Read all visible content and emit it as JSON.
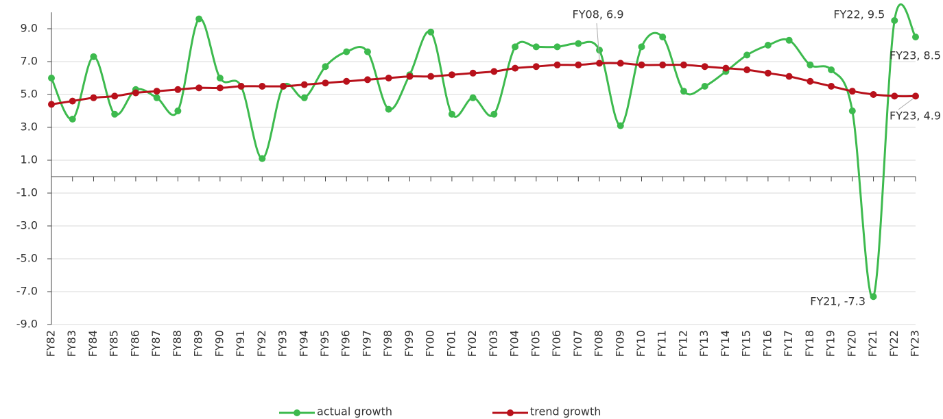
{
  "chart_data": {
    "type": "line",
    "categories": [
      "FY82",
      "FY83",
      "FY84",
      "FY85",
      "FY86",
      "FY87",
      "FY88",
      "FY89",
      "FY90",
      "FY91",
      "FY92",
      "FY93",
      "FY94",
      "FY95",
      "FY96",
      "FY97",
      "FY98",
      "FY99",
      "FY00",
      "FY01",
      "FY02",
      "FY03",
      "FY04",
      "FY05",
      "FY06",
      "FY07",
      "FY08",
      "FY09",
      "FY10",
      "FY11",
      "FY12",
      "FY13",
      "FY14",
      "FY15",
      "FY16",
      "FY17",
      "FY18",
      "FY19",
      "FY20",
      "FY21",
      "FY22",
      "FY23"
    ],
    "series": [
      {
        "name": "actual growth",
        "color": "#3dba4e",
        "values": [
          6.0,
          3.5,
          7.3,
          3.8,
          5.3,
          4.8,
          4.0,
          9.6,
          6.0,
          5.5,
          1.1,
          5.5,
          4.8,
          6.7,
          7.6,
          7.6,
          4.1,
          6.2,
          8.8,
          3.8,
          4.8,
          3.8,
          7.9,
          7.9,
          7.9,
          8.1,
          7.7,
          3.1,
          7.9,
          8.5,
          5.2,
          5.5,
          6.4,
          7.4,
          8.0,
          8.3,
          6.8,
          6.5,
          4.0,
          -7.3,
          9.5,
          8.5
        ]
      },
      {
        "name": "trend growth",
        "color": "#b8111b",
        "values": [
          4.4,
          4.6,
          4.8,
          4.9,
          5.1,
          5.2,
          5.3,
          5.4,
          5.4,
          5.5,
          5.5,
          5.5,
          5.6,
          5.7,
          5.8,
          5.9,
          6.0,
          6.1,
          6.1,
          6.2,
          6.3,
          6.4,
          6.6,
          6.7,
          6.8,
          6.8,
          6.9,
          6.9,
          6.8,
          6.8,
          6.8,
          6.7,
          6.6,
          6.5,
          6.3,
          6.1,
          5.8,
          5.5,
          5.2,
          5.0,
          4.9,
          4.9
        ]
      }
    ],
    "ylim": [
      -9,
      10
    ],
    "yticks": [
      {
        "value": -9,
        "label": "-9.0"
      },
      {
        "value": -7,
        "label": "-7.0"
      },
      {
        "value": -5,
        "label": "-5.0"
      },
      {
        "value": -3,
        "label": "-3.0"
      },
      {
        "value": -1,
        "label": "-1.0"
      },
      {
        "value": 1,
        "label": "1.0"
      },
      {
        "value": 3,
        "label": "3.0"
      },
      {
        "value": 5,
        "label": "5.0"
      },
      {
        "value": 7,
        "label": "7.0"
      },
      {
        "value": 9,
        "label": "9.0"
      }
    ],
    "grid": true,
    "legend": "bottom",
    "annotations": [
      "FY08, 6.9",
      "FY22, 9.5",
      "FY23, 8.5",
      "FY23, 4.9",
      "FY21, -7.3"
    ]
  }
}
